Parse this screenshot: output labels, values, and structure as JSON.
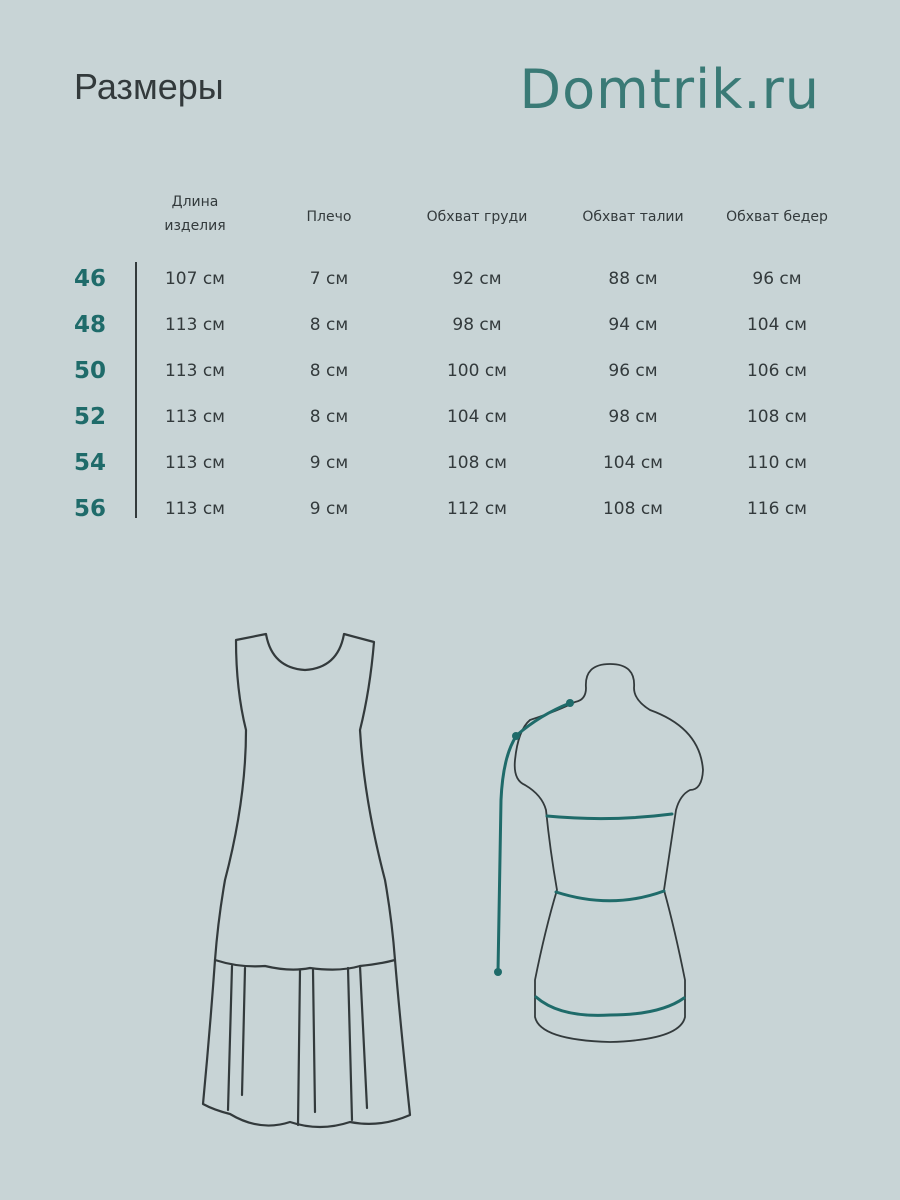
{
  "title": "Размеры",
  "brand": "Domtrik.ru",
  "colors": {
    "background": "#c8d4d6",
    "accent": "#1f6b6a",
    "brand": "#3a7a76",
    "text": "#333a3c"
  },
  "table": {
    "headers": [
      {
        "line1": "Длина",
        "line2": "изделия"
      },
      {
        "line1": "Плечо"
      },
      {
        "line1": "Обхват груди"
      },
      {
        "line1": "Обхват талии"
      },
      {
        "line1": "Обхват бедер"
      }
    ],
    "rows": [
      {
        "size": "46",
        "cells": [
          "107 см",
          "7 см",
          "92 см",
          "88 см",
          "96 см"
        ]
      },
      {
        "size": "48",
        "cells": [
          "113 см",
          "8 см",
          "98 см",
          "94 см",
          "104 см"
        ]
      },
      {
        "size": "50",
        "cells": [
          "113 см",
          "8 см",
          "100 см",
          "96 см",
          "106 см"
        ]
      },
      {
        "size": "52",
        "cells": [
          "113 см",
          "8 см",
          "104 см",
          "98 см",
          "108 см"
        ]
      },
      {
        "size": "54",
        "cells": [
          "113 см",
          "9 см",
          "108 см",
          "104 см",
          "110 см"
        ]
      },
      {
        "size": "56",
        "cells": [
          "113 см",
          "9 см",
          "112 см",
          "108 см",
          "116 см"
        ]
      }
    ]
  },
  "illustrations": {
    "dress": "sleeveless-tiered-dress-outline",
    "mannequin": "mannequin-with-measurement-lines"
  }
}
